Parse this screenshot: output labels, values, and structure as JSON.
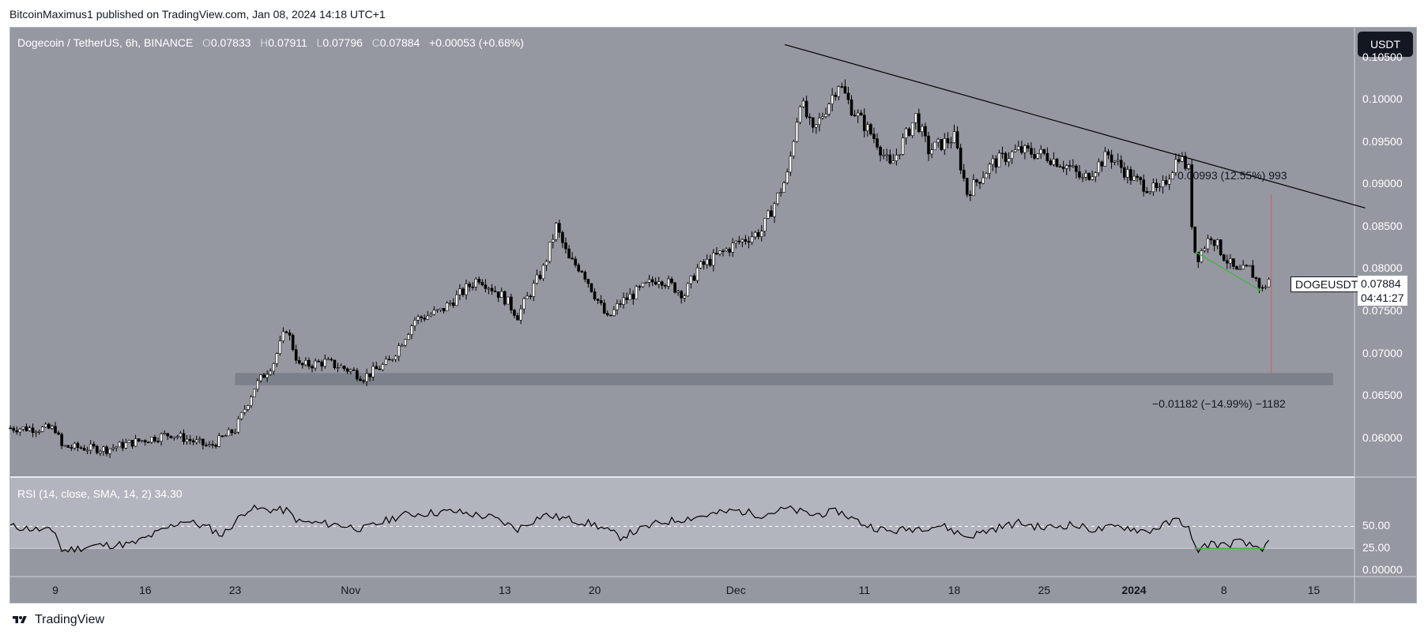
{
  "header": {
    "publisher": "BitcoinMaximus1 published on TradingView.com, Jan 08, 2024 14:18 UTC+1"
  },
  "symbol_bar": {
    "name": "Dogecoin / TetherUS, 6h, BINANCE",
    "o_key": "O",
    "o_val": "0.07833",
    "h_key": "H",
    "h_val": "0.07911",
    "l_key": "L",
    "l_val": "0.07796",
    "c_key": "C",
    "c_val": "0.07884",
    "change": "+0.00053 (+0.68%)"
  },
  "currency_badge": "USDT",
  "price_tag": {
    "symbol": "DOGEUSDT",
    "price": "0.07884",
    "countdown": "04:41:27"
  },
  "measurements": {
    "upper": "0.00993 (12.55%) 993",
    "lower": "−0.01182 (−14.99%) −1182"
  },
  "rsi_label": "RSI (14, close, SMA, 14, 2)  34.30",
  "footer": {
    "brand": "TradingView"
  },
  "colors": {
    "chart_bg": "#9598a1",
    "rsi_bg": "#b2b5be",
    "candle": "#000000",
    "support_zone": "#787b86",
    "green_line": "#4caf50",
    "red_line": "#f23645"
  },
  "chart_data": [
    {
      "type": "candlestick",
      "title": "Dogecoin / TetherUS, 6h, BINANCE",
      "ylim": [
        0.0555,
        0.1085
      ],
      "y_ticks": [
        "0.10500",
        "0.10000",
        "0.09500",
        "0.09000",
        "0.08500",
        "0.08000",
        "0.07500",
        "0.07000",
        "0.06500",
        "0.06000"
      ],
      "x_ticks": [
        {
          "label": "9",
          "day": 0
        },
        {
          "label": "16",
          "day": 7
        },
        {
          "label": "23",
          "day": 14
        },
        {
          "label": "Nov",
          "day": 23
        },
        {
          "label": "13",
          "day": 35
        },
        {
          "label": "20",
          "day": 42
        },
        {
          "label": "Dec",
          "day": 53
        },
        {
          "label": "11",
          "day": 63
        },
        {
          "label": "18",
          "day": 70
        },
        {
          "label": "25",
          "day": 77
        },
        {
          "label": "2024",
          "day": 84,
          "bold": true
        },
        {
          "label": "8",
          "day": 91
        },
        {
          "label": "15",
          "day": 98
        }
      ],
      "close_path": [
        {
          "day": -3.5,
          "price": 0.0612
        },
        {
          "day": 0,
          "price": 0.0611
        },
        {
          "day": 0.5,
          "price": 0.059
        },
        {
          "day": 4,
          "price": 0.0587
        },
        {
          "day": 6,
          "price": 0.0595
        },
        {
          "day": 9,
          "price": 0.0605
        },
        {
          "day": 12,
          "price": 0.059
        },
        {
          "day": 14,
          "price": 0.061
        },
        {
          "day": 15.5,
          "price": 0.066
        },
        {
          "day": 17,
          "price": 0.069
        },
        {
          "day": 18,
          "price": 0.073
        },
        {
          "day": 19,
          "price": 0.0685
        },
        {
          "day": 21,
          "price": 0.069
        },
        {
          "day": 23,
          "price": 0.068
        },
        {
          "day": 24,
          "price": 0.0672
        },
        {
          "day": 26,
          "price": 0.069
        },
        {
          "day": 28,
          "price": 0.074
        },
        {
          "day": 30,
          "price": 0.075
        },
        {
          "day": 33,
          "price": 0.079
        },
        {
          "day": 35,
          "price": 0.0765
        },
        {
          "day": 36,
          "price": 0.0745
        },
        {
          "day": 38,
          "price": 0.08
        },
        {
          "day": 39,
          "price": 0.085
        },
        {
          "day": 40,
          "price": 0.081
        },
        {
          "day": 41,
          "price": 0.08
        },
        {
          "day": 43,
          "price": 0.074
        },
        {
          "day": 44,
          "price": 0.076
        },
        {
          "day": 47,
          "price": 0.079
        },
        {
          "day": 49,
          "price": 0.077
        },
        {
          "day": 50,
          "price": 0.08
        },
        {
          "day": 53,
          "price": 0.083
        },
        {
          "day": 55,
          "price": 0.0845
        },
        {
          "day": 57,
          "price": 0.091
        },
        {
          "day": 58,
          "price": 0.1
        },
        {
          "day": 59,
          "price": 0.096
        },
        {
          "day": 61,
          "price": 0.102
        },
        {
          "day": 62,
          "price": 0.099
        },
        {
          "day": 63,
          "price": 0.097
        },
        {
          "day": 64,
          "price": 0.095
        },
        {
          "day": 65,
          "price": 0.092
        },
        {
          "day": 67,
          "price": 0.098
        },
        {
          "day": 68,
          "price": 0.094
        },
        {
          "day": 70,
          "price": 0.0955
        },
        {
          "day": 71,
          "price": 0.089
        },
        {
          "day": 73,
          "price": 0.0925
        },
        {
          "day": 75,
          "price": 0.094
        },
        {
          "day": 77,
          "price": 0.0935
        },
        {
          "day": 79,
          "price": 0.092
        },
        {
          "day": 80,
          "price": 0.0905
        },
        {
          "day": 82,
          "price": 0.0935
        },
        {
          "day": 84,
          "price": 0.0905
        },
        {
          "day": 86,
          "price": 0.089
        },
        {
          "day": 87.5,
          "price": 0.0935
        },
        {
          "day": 88.3,
          "price": 0.0915
        },
        {
          "day": 88.6,
          "price": 0.0825
        },
        {
          "day": 89,
          "price": 0.0815
        },
        {
          "day": 90,
          "price": 0.084
        },
        {
          "day": 91,
          "price": 0.0815
        },
        {
          "day": 92,
          "price": 0.0795
        },
        {
          "day": 93,
          "price": 0.08
        },
        {
          "day": 94,
          "price": 0.0775
        },
        {
          "day": 94.5,
          "price": 0.0788
        }
      ],
      "trend_line": [
        {
          "day": 56.8,
          "price": 0.1065
        },
        {
          "day": 102,
          "price": 0.0872
        }
      ],
      "support_zone": [
        0.06625,
        0.0677
      ],
      "green_segment": [
        {
          "day": 88.8,
          "price": 0.082
        },
        {
          "day": 94,
          "price": 0.0773
        }
      ]
    },
    {
      "type": "line",
      "title": "RSI (14, close, SMA, 14, 2)",
      "ylim": [
        -7,
        105
      ],
      "y_ticks": [
        "50.00",
        "25.00",
        "0.00000"
      ],
      "levels": [
        50,
        25
      ],
      "values": [
        {
          "day": -3.5,
          "rsi": 50
        },
        {
          "day": 0,
          "rsi": 44
        },
        {
          "day": 0.5,
          "rsi": 22
        },
        {
          "day": 3,
          "rsi": 28
        },
        {
          "day": 6,
          "rsi": 30
        },
        {
          "day": 8,
          "rsi": 43
        },
        {
          "day": 10,
          "rsi": 57
        },
        {
          "day": 12,
          "rsi": 48
        },
        {
          "day": 13,
          "rsi": 40
        },
        {
          "day": 15,
          "rsi": 70
        },
        {
          "day": 18,
          "rsi": 68
        },
        {
          "day": 19,
          "rsi": 55
        },
        {
          "day": 22,
          "rsi": 52
        },
        {
          "day": 24,
          "rsi": 47
        },
        {
          "day": 27,
          "rsi": 63
        },
        {
          "day": 31,
          "rsi": 67
        },
        {
          "day": 34,
          "rsi": 60
        },
        {
          "day": 36,
          "rsi": 47
        },
        {
          "day": 38,
          "rsi": 63
        },
        {
          "day": 40,
          "rsi": 58
        },
        {
          "day": 42,
          "rsi": 52
        },
        {
          "day": 44,
          "rsi": 38
        },
        {
          "day": 47,
          "rsi": 54
        },
        {
          "day": 50,
          "rsi": 61
        },
        {
          "day": 53,
          "rsi": 68
        },
        {
          "day": 55,
          "rsi": 63
        },
        {
          "day": 57,
          "rsi": 70
        },
        {
          "day": 59,
          "rsi": 63
        },
        {
          "day": 61,
          "rsi": 67
        },
        {
          "day": 63,
          "rsi": 52
        },
        {
          "day": 65,
          "rsi": 44
        },
        {
          "day": 67,
          "rsi": 48
        },
        {
          "day": 69,
          "rsi": 51
        },
        {
          "day": 71,
          "rsi": 38
        },
        {
          "day": 73,
          "rsi": 47
        },
        {
          "day": 75,
          "rsi": 54
        },
        {
          "day": 77,
          "rsi": 48
        },
        {
          "day": 79,
          "rsi": 52
        },
        {
          "day": 81,
          "rsi": 46
        },
        {
          "day": 83,
          "rsi": 50
        },
        {
          "day": 85,
          "rsi": 44
        },
        {
          "day": 87.5,
          "rsi": 58
        },
        {
          "day": 88.3,
          "rsi": 47
        },
        {
          "day": 88.6,
          "rsi": 27
        },
        {
          "day": 89,
          "rsi": 24
        },
        {
          "day": 90,
          "rsi": 31
        },
        {
          "day": 91,
          "rsi": 28
        },
        {
          "day": 92,
          "rsi": 33
        },
        {
          "day": 93,
          "rsi": 28
        },
        {
          "day": 94,
          "rsi": 26
        },
        {
          "day": 94.5,
          "rsi": 34.3
        }
      ],
      "green_segment": [
        {
          "day": 88.7,
          "rsi": 25
        },
        {
          "day": 94.2,
          "rsi": 25
        }
      ]
    }
  ]
}
